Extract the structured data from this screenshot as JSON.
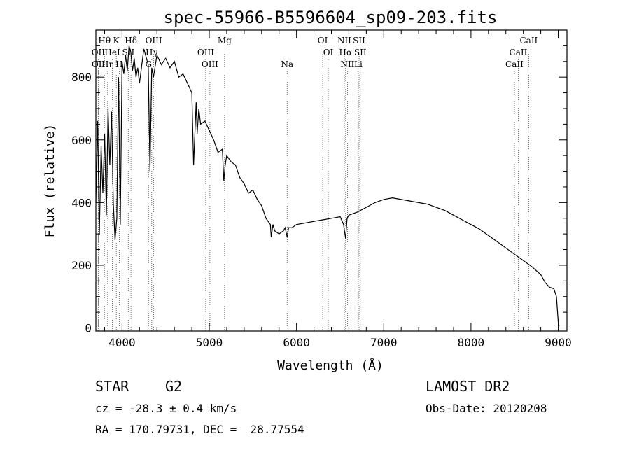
{
  "chart_data": {
    "type": "line",
    "title": "spec-55966-B5596604_sp09-203.fits",
    "xlabel": "Wavelength (Å)",
    "ylabel": "Flux (relative)",
    "xlim": [
      3700,
      9100
    ],
    "ylim": [
      -10,
      950
    ],
    "xticks": [
      4000,
      5000,
      6000,
      7000,
      8000,
      9000
    ],
    "yticks": [
      0,
      200,
      400,
      600,
      800
    ],
    "grid": false,
    "spectrum": {
      "x": [
        3700,
        3720,
        3740,
        3760,
        3780,
        3800,
        3820,
        3840,
        3860,
        3880,
        3900,
        3920,
        3940,
        3960,
        3980,
        4000,
        4020,
        4040,
        4060,
        4080,
        4100,
        4120,
        4140,
        4160,
        4180,
        4200,
        4250,
        4300,
        4320,
        4340,
        4360,
        4400,
        4450,
        4500,
        4550,
        4600,
        4650,
        4700,
        4750,
        4800,
        4820,
        4850,
        4861,
        4880,
        4900,
        4950,
        5000,
        5050,
        5100,
        5150,
        5167,
        5183,
        5200,
        5250,
        5300,
        5350,
        5400,
        5450,
        5500,
        5550,
        5600,
        5650,
        5700,
        5710,
        5730,
        5750,
        5800,
        5850,
        5870,
        5893,
        5910,
        5950,
        6000,
        6100,
        6200,
        6300,
        6400,
        6500,
        6540,
        6563,
        6580,
        6600,
        6700,
        6800,
        6900,
        7000,
        7100,
        7200,
        7300,
        7400,
        7500,
        7600,
        7700,
        7800,
        7900,
        8000,
        8100,
        8200,
        8300,
        8400,
        8500,
        8600,
        8700,
        8800,
        8850,
        8900,
        8950,
        8980,
        9000,
        9010
      ],
      "y": [
        400,
        660,
        300,
        580,
        430,
        620,
        360,
        700,
        520,
        690,
        400,
        280,
        350,
        800,
        330,
        850,
        810,
        870,
        820,
        900,
        880,
        820,
        860,
        800,
        830,
        780,
        890,
        840,
        500,
        830,
        800,
        870,
        840,
        860,
        830,
        850,
        800,
        810,
        780,
        750,
        520,
        720,
        620,
        700,
        650,
        660,
        630,
        600,
        560,
        570,
        470,
        520,
        550,
        530,
        520,
        480,
        460,
        430,
        440,
        410,
        390,
        350,
        330,
        290,
        330,
        310,
        300,
        310,
        320,
        290,
        320,
        320,
        330,
        335,
        340,
        345,
        350,
        355,
        330,
        285,
        350,
        360,
        370,
        385,
        400,
        410,
        415,
        410,
        405,
        400,
        395,
        385,
        375,
        360,
        345,
        330,
        315,
        295,
        275,
        255,
        235,
        215,
        195,
        170,
        145,
        130,
        125,
        100,
        20,
        5
      ]
    },
    "lines": [
      {
        "label": "Hθ",
        "x": 3798,
        "row": 0
      },
      {
        "label": "K",
        "x": 3934,
        "row": 0
      },
      {
        "label": "Hδ",
        "x": 4102,
        "row": 0
      },
      {
        "label": "OIII",
        "x": 4363,
        "row": 0
      },
      {
        "label": "Mg",
        "x": 5175,
        "row": 0
      },
      {
        "label": "OI",
        "x": 6300,
        "row": 0
      },
      {
        "label": "NII",
        "x": 6548,
        "row": 0
      },
      {
        "label": "SII",
        "x": 6717,
        "row": 0
      },
      {
        "label": "CaII",
        "x": 8662,
        "row": 0
      },
      {
        "label": "OII",
        "x": 3727,
        "row": 1
      },
      {
        "label": "HeI",
        "x": 3889,
        "row": 1
      },
      {
        "label": "SII",
        "x": 4072,
        "row": 1
      },
      {
        "label": "Hγ",
        "x": 4340,
        "row": 1
      },
      {
        "label": "OIII",
        "x": 4959,
        "row": 1
      },
      {
        "label": "OI",
        "x": 6364,
        "row": 1
      },
      {
        "label": "Hα",
        "x": 6563,
        "row": 1
      },
      {
        "label": "SII",
        "x": 6731,
        "row": 1
      },
      {
        "label": "CaII",
        "x": 8542,
        "row": 1
      },
      {
        "label": "OII",
        "x": 3729,
        "row": 2
      },
      {
        "label": "Hη",
        "x": 3835,
        "row": 2
      },
      {
        "label": "H",
        "x": 3968,
        "row": 2
      },
      {
        "label": "G",
        "x": 4304,
        "row": 2
      },
      {
        "label": "OIII",
        "x": 5007,
        "row": 2
      },
      {
        "label": "Na",
        "x": 5893,
        "row": 2
      },
      {
        "label": "NII",
        "x": 6584,
        "row": 2
      },
      {
        "label": "Li",
        "x": 6708,
        "row": 2
      },
      {
        "label": "CaII",
        "x": 8498,
        "row": 2
      }
    ]
  },
  "info": {
    "object_class": "STAR",
    "subclass": "G2",
    "survey": "LAMOST DR2",
    "redshift": "cz = -28.3 ± 0.4 km/s",
    "obs_date": "Obs-Date: 20120208",
    "coords": "RA = 170.79731, DEC =  28.77554"
  }
}
